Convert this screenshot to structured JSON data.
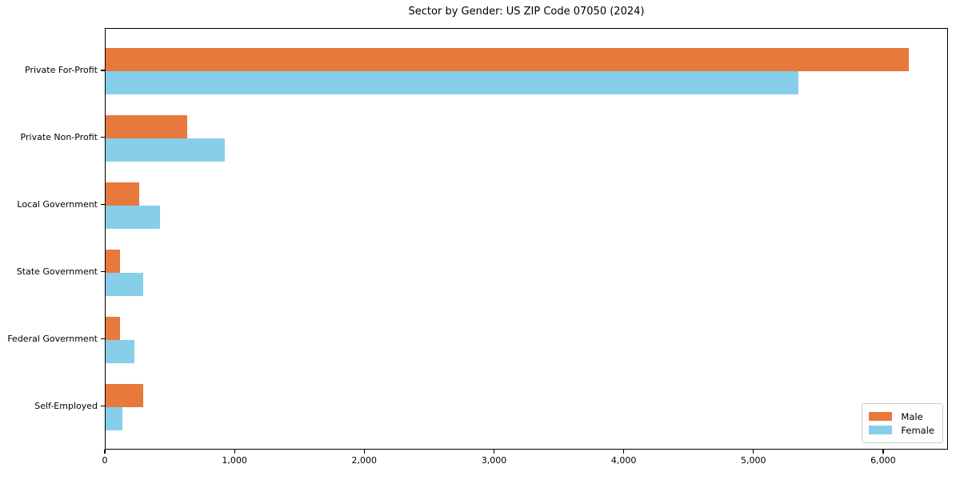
{
  "title": "Sector by Gender: US ZIP Code 07050 (2024)",
  "colors": {
    "male": "#E8793C",
    "female": "#87CEEB",
    "spine": "#000000",
    "legend_border": "#cccccc",
    "background": "#ffffff"
  },
  "chart_data": {
    "type": "bar",
    "orientation": "horizontal",
    "title": "Sector by Gender: US ZIP Code 07050 (2024)",
    "categories": [
      "Private For-Profit",
      "Private Non-Profit",
      "Local Government",
      "State Government",
      "Federal Government",
      "Self-Employed"
    ],
    "series": [
      {
        "name": "Male",
        "color": "#E8793C",
        "values": [
          6190,
          630,
          260,
          110,
          110,
          290
        ]
      },
      {
        "name": "Female",
        "color": "#87CEEB",
        "values": [
          5340,
          920,
          420,
          290,
          220,
          130
        ]
      }
    ],
    "xlabel": "",
    "ylabel": "",
    "xlim": [
      0,
      6500
    ],
    "xticks": [
      0,
      1000,
      2000,
      3000,
      4000,
      5000,
      6000
    ],
    "xtick_labels": [
      "0",
      "1,000",
      "2,000",
      "3,000",
      "4,000",
      "5,000",
      "6,000"
    ],
    "grid": false,
    "legend_position": "lower right"
  }
}
